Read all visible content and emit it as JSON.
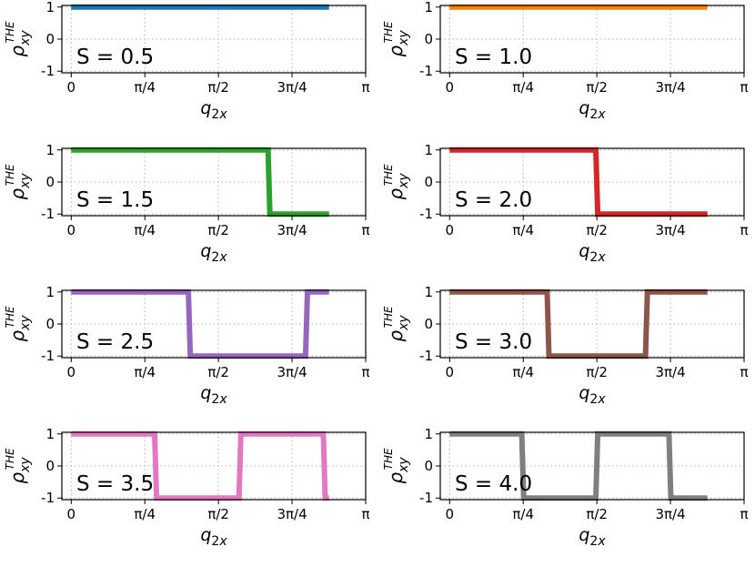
{
  "chart_data": [
    {
      "type": "line",
      "annotation": "S = 0.5",
      "color": "#1f77b4",
      "xlabel": "q2x",
      "ylabel": "ρxy THE",
      "xlim": [
        -0.1,
        3.14159
      ],
      "ylim": [
        -1.05,
        1.05
      ],
      "xticks": [
        0,
        0.7854,
        1.5708,
        2.3562,
        3.14159
      ],
      "xticklabels": [
        "0",
        "π/4",
        "π/2",
        "3π/4",
        "π"
      ],
      "yticks": [
        -1,
        0,
        1
      ],
      "yticklabels": [
        "-1",
        "0",
        "1"
      ],
      "grid": true,
      "x": [
        0.0,
        2.75
      ],
      "y": [
        1,
        1
      ]
    },
    {
      "type": "line",
      "annotation": "S = 1.0",
      "color": "#ff7f0e",
      "xlabel": "q2x",
      "ylabel": "ρxy THE",
      "xlim": [
        -0.1,
        3.14159
      ],
      "ylim": [
        -1.05,
        1.05
      ],
      "xticks": [
        0,
        0.7854,
        1.5708,
        2.3562,
        3.14159
      ],
      "xticklabels": [
        "0",
        "π/4",
        "π/2",
        "3π/4",
        "π"
      ],
      "yticks": [
        -1,
        0,
        1
      ],
      "yticklabels": [
        "-1",
        "0",
        "1"
      ],
      "grid": true,
      "x": [
        0.0,
        2.75
      ],
      "y": [
        1,
        1
      ]
    },
    {
      "type": "line",
      "annotation": "S = 1.5",
      "color": "#2ca02c",
      "xlabel": "q2x",
      "ylabel": "ρxy THE",
      "xlim": [
        -0.1,
        3.14159
      ],
      "ylim": [
        -1.05,
        1.05
      ],
      "xticks": [
        0,
        0.7854,
        1.5708,
        2.3562,
        3.14159
      ],
      "xticklabels": [
        "0",
        "π/4",
        "π/2",
        "3π/4",
        "π"
      ],
      "yticks": [
        -1,
        0,
        1
      ],
      "yticklabels": [
        "-1",
        "0",
        "1"
      ],
      "grid": true,
      "x": [
        0.0,
        2.1,
        2.12,
        2.75
      ],
      "y": [
        1,
        1,
        -1,
        -1
      ]
    },
    {
      "type": "line",
      "annotation": "S = 2.0",
      "color": "#d62728",
      "xlabel": "q2x",
      "ylabel": "ρxy THE",
      "xlim": [
        -0.1,
        3.14159
      ],
      "ylim": [
        -1.05,
        1.05
      ],
      "xticks": [
        0,
        0.7854,
        1.5708,
        2.3562,
        3.14159
      ],
      "xticklabels": [
        "0",
        "π/4",
        "π/2",
        "3π/4",
        "π"
      ],
      "yticks": [
        -1,
        0,
        1
      ],
      "yticklabels": [
        "-1",
        "0",
        "1"
      ],
      "grid": true,
      "x": [
        0.0,
        1.56,
        1.58,
        2.75
      ],
      "y": [
        1,
        1,
        -1,
        -1
      ]
    },
    {
      "type": "line",
      "annotation": "S = 2.5",
      "color": "#9467bd",
      "xlabel": "q2x",
      "ylabel": "ρxy THE",
      "xlim": [
        -0.1,
        3.14159
      ],
      "ylim": [
        -1.05,
        1.05
      ],
      "xticks": [
        0,
        0.7854,
        1.5708,
        2.3562,
        3.14159
      ],
      "xticklabels": [
        "0",
        "π/4",
        "π/2",
        "3π/4",
        "π"
      ],
      "yticks": [
        -1,
        0,
        1
      ],
      "yticklabels": [
        "-1",
        "0",
        "1"
      ],
      "grid": true,
      "x": [
        0.0,
        1.25,
        1.27,
        2.5,
        2.52,
        2.75
      ],
      "y": [
        1,
        1,
        -1,
        -1,
        1,
        1
      ]
    },
    {
      "type": "line",
      "annotation": "S = 3.0",
      "color": "#8c564b",
      "xlabel": "q2x",
      "ylabel": "ρxy THE",
      "xlim": [
        -0.1,
        3.14159
      ],
      "ylim": [
        -1.05,
        1.05
      ],
      "xticks": [
        0,
        0.7854,
        1.5708,
        2.3562,
        3.14159
      ],
      "xticklabels": [
        "0",
        "π/4",
        "π/2",
        "3π/4",
        "π"
      ],
      "yticks": [
        -1,
        0,
        1
      ],
      "yticklabels": [
        "-1",
        "0",
        "1"
      ],
      "grid": true,
      "x": [
        0.0,
        1.04,
        1.06,
        2.09,
        2.11,
        2.75
      ],
      "y": [
        1,
        1,
        -1,
        -1,
        1,
        1
      ]
    },
    {
      "type": "line",
      "annotation": "S = 3.5",
      "color": "#e377c2",
      "xlabel": "q2x",
      "ylabel": "ρxy THE",
      "xlim": [
        -0.1,
        3.14159
      ],
      "ylim": [
        -1.05,
        1.05
      ],
      "xticks": [
        0,
        0.7854,
        1.5708,
        2.3562,
        3.14159
      ],
      "xticklabels": [
        "0",
        "π/4",
        "π/2",
        "3π/4",
        "π"
      ],
      "yticks": [
        -1,
        0,
        1
      ],
      "yticklabels": [
        "-1",
        "0",
        "1"
      ],
      "grid": true,
      "x": [
        0.0,
        0.89,
        0.91,
        1.79,
        1.81,
        2.69,
        2.71,
        2.75
      ],
      "y": [
        1,
        1,
        -1,
        -1,
        1,
        1,
        -1,
        -1
      ]
    },
    {
      "type": "line",
      "annotation": "S = 4.0",
      "color": "#7f7f7f",
      "xlabel": "q2x",
      "ylabel": "ρxy THE",
      "xlim": [
        -0.1,
        3.14159
      ],
      "ylim": [
        -1.05,
        1.05
      ],
      "xticks": [
        0,
        0.7854,
        1.5708,
        2.3562,
        3.14159
      ],
      "xticklabels": [
        "0",
        "π/4",
        "π/2",
        "3π/4",
        "π"
      ],
      "yticks": [
        -1,
        0,
        1
      ],
      "yticklabels": [
        "-1",
        "0",
        "1"
      ],
      "grid": true,
      "x": [
        0.0,
        0.77,
        0.79,
        1.56,
        1.58,
        2.34,
        2.36,
        2.75
      ],
      "y": [
        1,
        1,
        -1,
        -1,
        1,
        1,
        -1,
        -1
      ]
    }
  ]
}
